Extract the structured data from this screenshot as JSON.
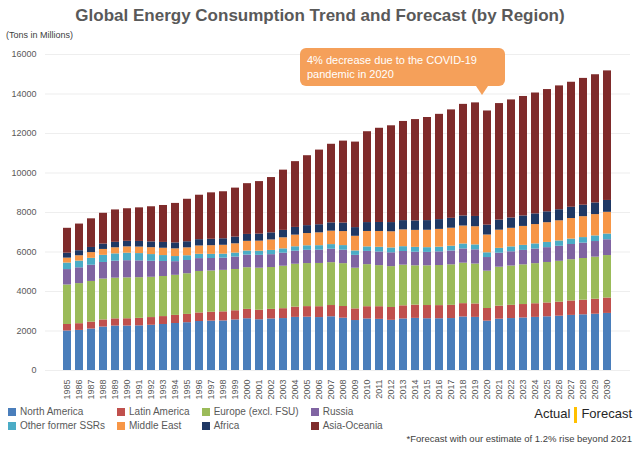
{
  "chart_data": {
    "type": "bar",
    "title": "Global Energy Consumption Trend and Forecast (by Region)",
    "y_label": "(Tons in Millions)",
    "annotation": "4% decrease due to the COVID-19 pandemic in 2020",
    "divider_labels": [
      "Actual",
      "Forecast"
    ],
    "note": "*Forecast with our estimate of 1.2% rise beyond 2021",
    "stacked": true,
    "grid": true,
    "legend": "bottom",
    "ylim": [
      0,
      16000
    ],
    "yticks": [
      0,
      2000,
      4000,
      6000,
      8000,
      10000,
      12000,
      14000,
      16000
    ],
    "categories": [
      "1985",
      "1986",
      "1987",
      "1988",
      "1989",
      "1990",
      "1991",
      "1992",
      "1993",
      "1994",
      "1995",
      "1996",
      "1997",
      "1998",
      "1999",
      "2000",
      "2001",
      "2002",
      "2003",
      "2004",
      "2005",
      "2006",
      "2007",
      "2008",
      "2009",
      "2010",
      "2011",
      "2012",
      "2013",
      "2014",
      "2015",
      "2016",
      "2017",
      "2018",
      "2019",
      "2020",
      "2021",
      "2022",
      "2023",
      "2024",
      "2025",
      "2026",
      "2027",
      "2028",
      "2029",
      "2030"
    ],
    "series": [
      {
        "name": "North America",
        "color": "#4a7ebb",
        "values": [
          2000,
          2030,
          2100,
          2200,
          2250,
          2250,
          2260,
          2290,
          2330,
          2380,
          2420,
          2480,
          2500,
          2510,
          2560,
          2620,
          2570,
          2610,
          2630,
          2690,
          2700,
          2680,
          2720,
          2650,
          2530,
          2610,
          2590,
          2540,
          2610,
          2640,
          2620,
          2620,
          2630,
          2710,
          2690,
          2500,
          2600,
          2630,
          2660,
          2690,
          2720,
          2750,
          2790,
          2820,
          2850,
          2890
        ]
      },
      {
        "name": "Latin America",
        "color": "#c0504d",
        "values": [
          330,
          340,
          350,
          360,
          365,
          370,
          380,
          390,
          400,
          410,
          420,
          435,
          450,
          460,
          465,
          475,
          480,
          485,
          500,
          520,
          535,
          550,
          570,
          590,
          590,
          620,
          640,
          650,
          665,
          670,
          670,
          665,
          670,
          675,
          680,
          640,
          660,
          670,
          680,
          690,
          700,
          710,
          730,
          740,
          760,
          780
        ]
      },
      {
        "name": "Europe (excl. FSU)",
        "color": "#9bbb59",
        "values": [
          2000,
          2030,
          2060,
          2070,
          2060,
          2070,
          2060,
          2040,
          2030,
          2030,
          2060,
          2100,
          2090,
          2100,
          2090,
          2110,
          2130,
          2120,
          2150,
          2170,
          2180,
          2190,
          2170,
          2170,
          2060,
          2130,
          2080,
          2070,
          2060,
          1990,
          2010,
          2030,
          2050,
          2050,
          2020,
          1890,
          1970,
          1990,
          2010,
          2030,
          2050,
          2070,
          2090,
          2110,
          2130,
          2150
        ]
      },
      {
        "name": "Russia",
        "color": "#8064a2",
        "values": [
          780,
          800,
          820,
          840,
          860,
          870,
          850,
          810,
          760,
          690,
          670,
          650,
          630,
          620,
          630,
          640,
          650,
          650,
          660,
          660,
          670,
          670,
          680,
          680,
          650,
          670,
          690,
          700,
          690,
          690,
          680,
          690,
          700,
          720,
          720,
          690,
          710,
          720,
          730,
          740,
          750,
          760,
          770,
          780,
          790,
          800
        ]
      },
      {
        "name": "Other former SSRs",
        "color": "#4bacc6",
        "values": [
          330,
          340,
          350,
          360,
          370,
          380,
          370,
          340,
          300,
          260,
          240,
          220,
          210,
          200,
          200,
          205,
          210,
          215,
          220,
          225,
          230,
          230,
          235,
          235,
          225,
          230,
          240,
          245,
          245,
          245,
          240,
          240,
          245,
          250,
          250,
          240,
          245,
          250,
          255,
          260,
          265,
          270,
          275,
          280,
          285,
          290
        ]
      },
      {
        "name": "Middle East",
        "color": "#f79646",
        "values": [
          250,
          270,
          290,
          300,
          310,
          320,
          330,
          350,
          370,
          390,
          400,
          420,
          440,
          450,
          470,
          490,
          510,
          530,
          560,
          590,
          620,
          650,
          680,
          710,
          740,
          780,
          800,
          820,
          850,
          860,
          880,
          900,
          910,
          910,
          920,
          900,
          920,
          940,
          960,
          980,
          1000,
          1020,
          1040,
          1060,
          1080,
          1100
        ]
      },
      {
        "name": "Africa",
        "color": "#1f3864",
        "values": [
          250,
          255,
          260,
          270,
          275,
          280,
          285,
          290,
          295,
          300,
          310,
          320,
          325,
          330,
          340,
          350,
          355,
          360,
          375,
          390,
          400,
          410,
          420,
          430,
          440,
          450,
          455,
          465,
          470,
          480,
          490,
          495,
          500,
          510,
          520,
          500,
          510,
          520,
          530,
          540,
          550,
          560,
          570,
          580,
          590,
          600
        ]
      },
      {
        "name": "Asia-Oceania",
        "color": "#7f2b2b",
        "values": [
          1260,
          1350,
          1450,
          1560,
          1640,
          1650,
          1700,
          1780,
          1870,
          2000,
          2150,
          2250,
          2350,
          2380,
          2480,
          2570,
          2660,
          2800,
          3050,
          3330,
          3540,
          3780,
          3980,
          4150,
          4330,
          4600,
          4770,
          4900,
          5020,
          5130,
          5220,
          5330,
          5490,
          5650,
          5750,
          5780,
          5900,
          5980,
          6050,
          6120,
          6190,
          6270,
          6330,
          6420,
          6490,
          6560
        ]
      }
    ]
  }
}
